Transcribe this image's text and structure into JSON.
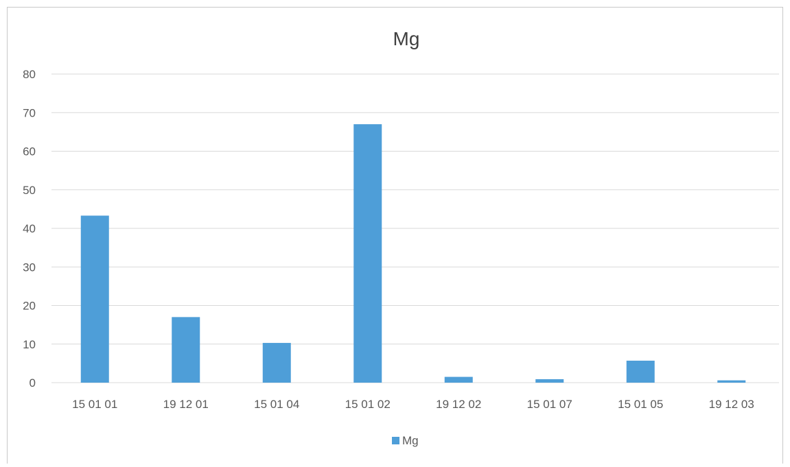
{
  "chart_data": {
    "type": "bar",
    "title": "Mg",
    "xlabel": "",
    "ylabel": "",
    "categories": [
      "15 01 01",
      "19 12 01",
      "15 01 04",
      "15 01 02",
      "19 12 02",
      "15 01 07",
      "15 01 05",
      "19 12 03"
    ],
    "series": [
      {
        "name": "Mg",
        "values": [
          43.3,
          17,
          10.3,
          67,
          1.5,
          0.9,
          5.7,
          0.6
        ],
        "color": "#4e9ed8"
      }
    ],
    "ylim": [
      0,
      80
    ],
    "yticks": [
      0,
      10,
      20,
      30,
      40,
      50,
      60,
      70,
      80
    ],
    "grid": true,
    "legend": "bottom"
  }
}
